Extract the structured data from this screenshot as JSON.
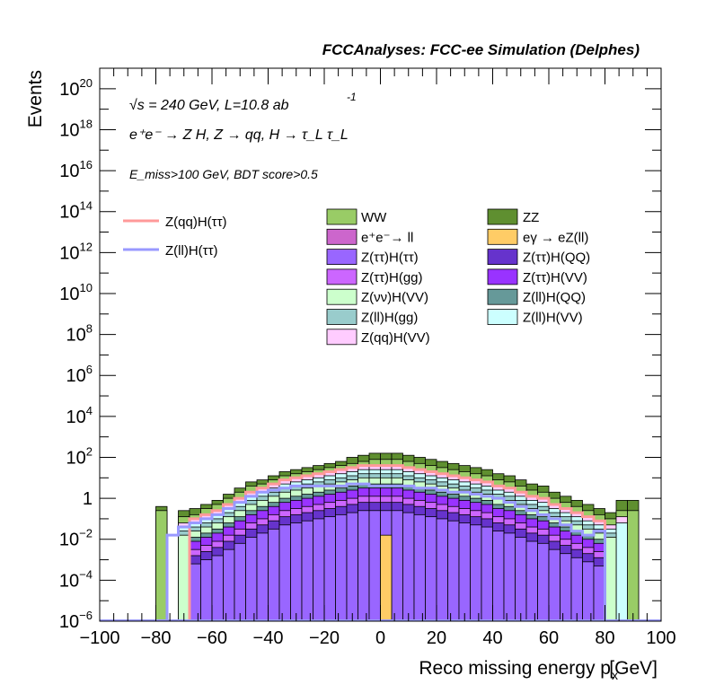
{
  "chart_data": {
    "type": "histogram",
    "title": "FCCAnalyses: FCC-ee Simulation (Delphes)",
    "xlabel": "Reco missing energy p",
    "xlabel_sub": "x",
    "xlabel_unit": "[GeV]",
    "ylabel": "Events",
    "y_scale": "log",
    "xlim": [
      -100,
      100
    ],
    "ylim_exp": [
      -6,
      21
    ],
    "x_ticks": [
      "−100",
      "−80",
      "−60",
      "−40",
      "−20",
      "0",
      "20",
      "40",
      "60",
      "80",
      "100"
    ],
    "y_ticks": [
      {
        "exp": -6,
        "base": "10",
        "sup": "−6"
      },
      {
        "exp": -4,
        "base": "10",
        "sup": "−4"
      },
      {
        "exp": -2,
        "base": "10",
        "sup": "−2"
      },
      {
        "exp": 0,
        "base": "1",
        "sup": ""
      },
      {
        "exp": 2,
        "base": "10",
        "sup": "2"
      },
      {
        "exp": 4,
        "base": "10",
        "sup": "4"
      },
      {
        "exp": 6,
        "base": "10",
        "sup": "6"
      },
      {
        "exp": 8,
        "base": "10",
        "sup": "8"
      },
      {
        "exp": 10,
        "base": "10",
        "sup": "10"
      },
      {
        "exp": 12,
        "base": "10",
        "sup": "12"
      },
      {
        "exp": 14,
        "base": "10",
        "sup": "14"
      },
      {
        "exp": 16,
        "base": "10",
        "sup": "16"
      },
      {
        "exp": 18,
        "base": "10",
        "sup": "18"
      },
      {
        "exp": 20,
        "base": "10",
        "sup": "20"
      }
    ],
    "annotations": {
      "energy": "√s = 240 GeV, L=10.8 ab",
      "energy_sup": "-1",
      "process": "e⁺e⁻ → Z H, Z → qq, H → τ_L τ_L",
      "cuts": "E_miss>100 GeV, BDT score>0.5"
    },
    "bins": {
      "start": -100,
      "width": 4,
      "count": 50
    },
    "stack_series": [
      {
        "name": "ZZ",
        "color": "#5f8f30",
        "log10": [
          null,
          null,
          null,
          null,
          null,
          -0.4,
          null,
          -0.6,
          -0.5,
          -0.3,
          -0.1,
          0.2,
          0.5,
          0.8,
          0.9,
          1.1,
          1.3,
          1.4,
          1.5,
          1.6,
          1.7,
          1.8,
          2.0,
          2.1,
          2.2,
          2.2,
          2.2,
          2.1,
          2.0,
          1.9,
          1.8,
          1.7,
          1.6,
          1.5,
          1.4,
          1.2,
          1.1,
          0.9,
          0.7,
          0.6,
          0.3,
          0.1,
          -0.1,
          -0.3,
          -0.5,
          -0.7,
          -0.1,
          -0.1,
          null,
          null
        ]
      },
      {
        "name": "WW",
        "color": "#99cc66",
        "log10": [
          null,
          null,
          null,
          null,
          null,
          -0.6,
          null,
          -0.9,
          -0.8,
          -0.5,
          -0.3,
          0.0,
          0.3,
          0.6,
          0.7,
          0.9,
          1.1,
          1.2,
          1.3,
          1.4,
          1.5,
          1.6,
          1.7,
          1.8,
          1.9,
          1.9,
          1.9,
          1.8,
          1.7,
          1.6,
          1.5,
          1.4,
          1.3,
          1.2,
          1.1,
          0.9,
          0.8,
          0.6,
          0.4,
          0.3,
          0.0,
          -0.2,
          -0.4,
          -0.6,
          -0.8,
          -1.0,
          -0.6,
          -0.6,
          null,
          null
        ]
      },
      {
        "name": "Z(qq)H(VV)",
        "color": "#ffccff",
        "log10": [
          null,
          null,
          null,
          null,
          null,
          null,
          null,
          -1.2,
          -1.0,
          -0.8,
          -0.6,
          -0.3,
          0.0,
          0.3,
          0.5,
          0.7,
          0.9,
          1.0,
          1.1,
          1.2,
          1.3,
          1.4,
          1.5,
          1.6,
          1.6,
          1.6,
          1.6,
          1.5,
          1.4,
          1.3,
          1.2,
          1.1,
          1.0,
          0.9,
          0.8,
          0.6,
          0.5,
          0.3,
          0.1,
          0.0,
          -0.3,
          -0.5,
          -0.7,
          -0.9,
          -1.1,
          -1.3,
          -0.9,
          null,
          null,
          null
        ]
      },
      {
        "name": "Z(ll)H(VV)",
        "color": "#ccffff",
        "log10": [
          null,
          null,
          null,
          null,
          null,
          null,
          null,
          -1.4,
          -1.2,
          -1.0,
          -0.8,
          -0.5,
          -0.2,
          0.1,
          0.3,
          0.5,
          0.7,
          0.8,
          0.9,
          1.0,
          1.1,
          1.2,
          1.3,
          1.4,
          1.4,
          1.4,
          1.4,
          1.3,
          1.2,
          1.1,
          1.0,
          0.9,
          0.8,
          0.7,
          0.6,
          0.4,
          0.3,
          0.1,
          -0.1,
          -0.2,
          -0.5,
          -0.7,
          -0.9,
          -1.1,
          -1.3,
          -1.5,
          -1.2,
          null,
          null,
          null
        ]
      },
      {
        "name": "Z(ll)H(gg)",
        "color": "#99cccc",
        "log10": [
          null,
          null,
          null,
          null,
          null,
          null,
          null,
          -1.6,
          -1.4,
          -1.2,
          -1.0,
          -0.7,
          -0.4,
          -0.1,
          0.1,
          0.3,
          0.5,
          0.6,
          0.7,
          0.8,
          0.9,
          1.0,
          1.1,
          1.2,
          1.2,
          1.2,
          1.2,
          1.1,
          1.0,
          0.9,
          0.8,
          0.7,
          0.6,
          0.5,
          0.4,
          0.2,
          0.1,
          -0.1,
          -0.3,
          -0.4,
          -0.7,
          -0.9,
          -1.1,
          -1.3,
          -1.5,
          -1.7,
          null,
          null,
          null,
          null
        ]
      },
      {
        "name": "Z(νν)H(VV)",
        "color": "#ccffcc",
        "log10": [
          null,
          null,
          null,
          null,
          null,
          null,
          null,
          -1.8,
          -1.6,
          -1.4,
          -1.2,
          -0.9,
          -0.6,
          -0.3,
          -0.1,
          0.1,
          0.3,
          0.4,
          0.5,
          0.6,
          0.7,
          0.8,
          0.9,
          1.0,
          1.0,
          1.0,
          1.0,
          0.9,
          0.8,
          0.7,
          0.6,
          0.5,
          0.4,
          0.3,
          0.2,
          0.0,
          -0.1,
          -0.3,
          -0.5,
          -0.6,
          -0.9,
          -1.1,
          -1.3,
          -1.5,
          -1.7,
          -1.9,
          null,
          null,
          null,
          null
        ]
      },
      {
        "name": "Z(ll)H(QQ)",
        "color": "#669999",
        "log10": [
          null,
          null,
          null,
          null,
          null,
          null,
          null,
          null,
          -1.9,
          -1.7,
          -1.5,
          -1.2,
          -0.9,
          -0.6,
          -0.4,
          -0.2,
          0.0,
          0.1,
          0.2,
          0.3,
          0.4,
          0.5,
          0.6,
          0.7,
          0.7,
          0.7,
          0.7,
          0.6,
          0.5,
          0.4,
          0.3,
          0.2,
          0.1,
          0.0,
          -0.1,
          -0.3,
          -0.4,
          -0.6,
          -0.8,
          -0.9,
          -1.2,
          -1.4,
          -1.6,
          -1.8,
          -2.0,
          null,
          null,
          null,
          null,
          null
        ]
      },
      {
        "name": "Z(ττ)H(VV)",
        "color": "#9933ff",
        "log10": [
          null,
          null,
          null,
          null,
          null,
          null,
          null,
          null,
          -2.1,
          -1.9,
          -1.7,
          -1.4,
          -1.1,
          -0.8,
          -0.6,
          -0.4,
          -0.2,
          -0.1,
          0.0,
          0.1,
          0.2,
          0.3,
          0.4,
          0.5,
          0.5,
          0.5,
          0.5,
          0.4,
          0.3,
          0.2,
          0.1,
          0.0,
          -0.1,
          -0.2,
          -0.3,
          -0.5,
          -0.6,
          -0.8,
          -1.0,
          -1.1,
          -1.4,
          -1.6,
          -1.8,
          -2.0,
          -2.2,
          null,
          null,
          null,
          null,
          null
        ]
      },
      {
        "name": "Z(ττ)H(gg)",
        "color": "#cc66ff",
        "log10": [
          null,
          null,
          null,
          null,
          null,
          null,
          null,
          null,
          -2.5,
          -2.3,
          -2.1,
          -1.8,
          -1.5,
          -1.2,
          -1.0,
          -0.8,
          -0.6,
          -0.5,
          -0.4,
          -0.3,
          -0.2,
          -0.1,
          0.0,
          0.1,
          0.1,
          0.1,
          0.1,
          0.0,
          -0.1,
          -0.2,
          -0.3,
          -0.4,
          -0.5,
          -0.6,
          -0.7,
          -0.9,
          -1.0,
          -1.2,
          -1.4,
          -1.5,
          -1.8,
          -2.0,
          -2.2,
          -2.4,
          -2.6,
          null,
          null,
          null,
          null,
          null
        ]
      },
      {
        "name": "Z(ττ)H(QQ)",
        "color": "#6633cc",
        "log10": [
          null,
          null,
          null,
          null,
          null,
          null,
          null,
          null,
          -2.8,
          -2.6,
          -2.4,
          -2.1,
          -1.8,
          -1.5,
          -1.3,
          -1.1,
          -0.9,
          -0.8,
          -0.7,
          -0.6,
          -0.5,
          -0.4,
          -0.3,
          -0.2,
          -0.2,
          -0.2,
          -0.2,
          -0.3,
          -0.4,
          -0.5,
          -0.6,
          -0.7,
          -0.8,
          -0.9,
          -1.0,
          -1.2,
          -1.3,
          -1.5,
          -1.7,
          -1.8,
          -2.1,
          -2.3,
          -2.5,
          -2.7,
          -2.9,
          null,
          null,
          null,
          null,
          null
        ]
      },
      {
        "name": "Z(ττ)H(ττ)",
        "color": "#9966ff",
        "log10": [
          null,
          null,
          null,
          null,
          null,
          null,
          null,
          null,
          -3.2,
          -3.0,
          -2.8,
          -2.5,
          -2.2,
          -1.9,
          -1.7,
          -1.5,
          -1.3,
          -1.2,
          -1.1,
          -1.0,
          -0.9,
          -0.8,
          -0.7,
          -0.6,
          -0.6,
          -0.6,
          -0.6,
          -0.7,
          -0.8,
          -0.9,
          -1.0,
          -1.1,
          -1.2,
          -1.3,
          -1.4,
          -1.6,
          -1.7,
          -1.9,
          -2.1,
          -2.2,
          -2.5,
          -2.7,
          -2.9,
          -3.1,
          -3.3,
          null,
          null,
          null,
          null,
          null
        ]
      },
      {
        "name": "eγ → eZ(ll)",
        "color": "#ffcc66",
        "log10": [
          null,
          null,
          null,
          null,
          null,
          null,
          null,
          null,
          null,
          null,
          null,
          null,
          null,
          null,
          null,
          null,
          null,
          null,
          null,
          null,
          null,
          null,
          null,
          null,
          null,
          -1.8,
          null,
          null,
          null,
          null,
          null,
          null,
          null,
          null,
          null,
          null,
          null,
          null,
          null,
          null,
          null,
          null,
          null,
          null,
          null,
          null,
          null,
          null,
          null,
          null
        ]
      },
      {
        "name": "e⁺e⁻→ ll",
        "color": "#cc66cc",
        "log10": [
          null,
          null,
          null,
          null,
          null,
          null,
          null,
          null,
          null,
          null,
          null,
          null,
          null,
          null,
          null,
          null,
          null,
          null,
          null,
          null,
          null,
          null,
          null,
          null,
          null,
          null,
          null,
          null,
          null,
          null,
          null,
          null,
          null,
          null,
          null,
          null,
          null,
          null,
          null,
          null,
          null,
          null,
          null,
          null,
          null,
          null,
          null,
          null,
          null,
          null
        ]
      }
    ],
    "line_series": [
      {
        "name": "Z(qq)H(ττ)",
        "color": "#ff9999",
        "log10": [
          null,
          null,
          null,
          null,
          null,
          null,
          null,
          null,
          -1.0,
          -0.8,
          -0.6,
          -0.3,
          0.0,
          0.3,
          0.5,
          0.7,
          0.9,
          1.0,
          1.1,
          1.2,
          1.3,
          1.4,
          1.5,
          1.6,
          1.6,
          1.6,
          1.6,
          1.5,
          1.4,
          1.3,
          1.2,
          1.1,
          1.0,
          0.9,
          0.8,
          0.6,
          0.5,
          0.3,
          0.1,
          0.0,
          -0.3,
          -0.5,
          -0.7,
          -0.9,
          -1.1,
          null,
          null,
          null,
          null,
          null
        ]
      },
      {
        "name": "Z(ll)H(ττ)",
        "color": "#9999ff",
        "log10": [
          null,
          null,
          null,
          null,
          null,
          null,
          -1.8,
          -1.4,
          -1.2,
          -1.0,
          -0.8,
          -0.5,
          -0.2,
          0.1,
          0.3,
          0.4,
          0.5,
          0.6,
          0.6,
          0.6,
          0.6,
          0.6,
          0.7,
          0.7,
          0.6,
          0.6,
          0.6,
          0.6,
          0.5,
          0.5,
          0.4,
          0.3,
          0.3,
          0.2,
          0.1,
          0.0,
          -0.2,
          -0.4,
          -0.6,
          -0.8,
          -1.0,
          -1.3,
          -1.6,
          -1.8,
          -1.6,
          null,
          null,
          null,
          null,
          null
        ]
      }
    ],
    "legend": {
      "left": [
        "Z(qq)H(ττ)",
        "Z(ll)H(ττ)"
      ],
      "col1": [
        "WW",
        "e⁺e⁻→ ll",
        "Z(ττ)H(ττ)",
        "Z(ττ)H(gg)",
        "Z(νν)H(VV)",
        "Z(ll)H(gg)",
        "Z(qq)H(VV)"
      ],
      "col2": [
        "ZZ",
        "eγ → eZ(ll)",
        "Z(ττ)H(QQ)",
        "Z(ττ)H(VV)",
        "Z(ll)H(QQ)",
        "Z(ll)H(VV)"
      ],
      "colors": {
        "WW": "#99cc66",
        "ZZ": "#5f8f30",
        "e⁺e⁻→ ll": "#cc66cc",
        "eγ → eZ(ll)": "#ffcc66",
        "Z(ττ)H(ττ)": "#9966ff",
        "Z(ττ)H(QQ)": "#6633cc",
        "Z(ττ)H(gg)": "#cc66ff",
        "Z(ττ)H(VV)": "#9933ff",
        "Z(νν)H(VV)": "#ccffcc",
        "Z(ll)H(QQ)": "#669999",
        "Z(ll)H(gg)": "#99cccc",
        "Z(ll)H(VV)": "#ccffff",
        "Z(qq)H(VV)": "#ffccff",
        "Z(qq)H(ττ)": "#ff9999",
        "Z(ll)H(ττ)": "#9999ff"
      }
    }
  }
}
